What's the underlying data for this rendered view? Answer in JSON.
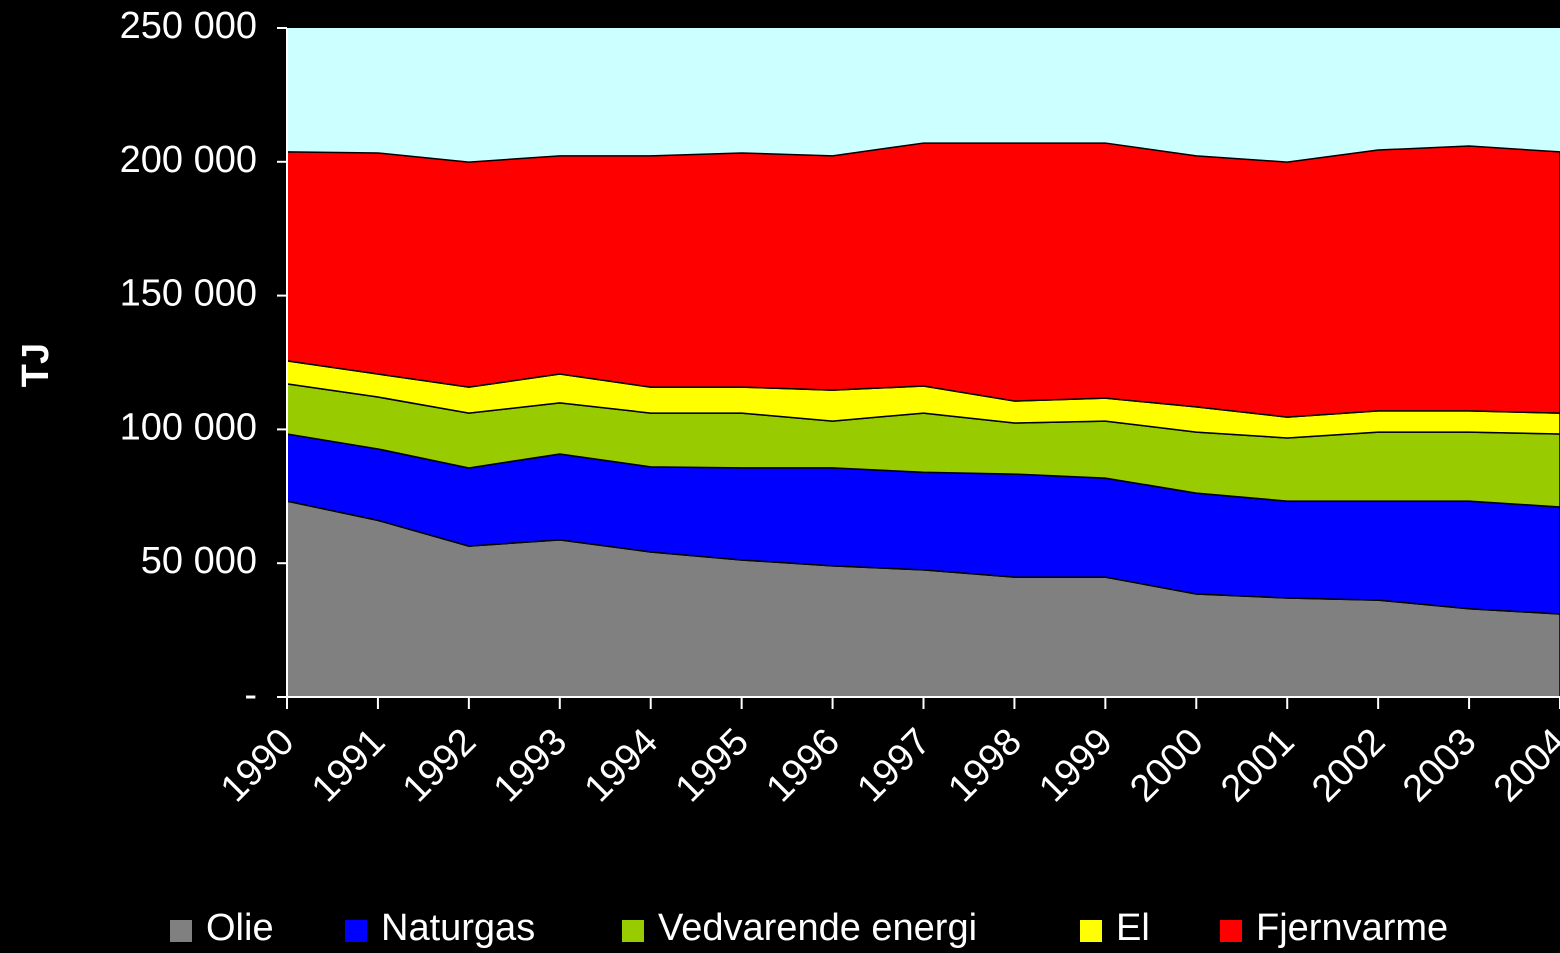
{
  "chart_data": {
    "type": "stacked_area",
    "y_label": "TJ",
    "categories": [
      "1990",
      "1991",
      "1992",
      "1993",
      "1994",
      "1995",
      "1996",
      "1997",
      "1998",
      "1999",
      "2000",
      "2001",
      "2002",
      "2003",
      "2004"
    ],
    "series": [
      {
        "name": "Olie",
        "color": "#808080",
        "values": [
          73.2,
          66,
          56.4,
          58.7,
          54.2,
          51.2,
          49,
          47.5,
          44.8,
          44.8,
          38.5,
          37,
          36.2,
          33,
          31
        ]
      },
      {
        "name": "Naturgas",
        "color": "#0000ff",
        "values": [
          25.1,
          26.7,
          29.2,
          32.1,
          31.8,
          34.4,
          36.6,
          36.5,
          38.5,
          37,
          37.7,
          36.2,
          37,
          40.2,
          40
        ]
      },
      {
        "name": "Vedvarende energi",
        "color": "#99cc00",
        "values": [
          18.7,
          19.4,
          20.5,
          19.1,
          20.1,
          20.5,
          17.5,
          22.1,
          19.1,
          21.3,
          22.8,
          23.6,
          25.8,
          25.8,
          27.3
        ]
      },
      {
        "name": "El",
        "color": "#ffff00",
        "values": [
          8.6,
          8.6,
          9.7,
          10.8,
          9.7,
          9.7,
          11.6,
          10.1,
          8.2,
          8.6,
          9.4,
          7.8,
          7.9,
          7.9,
          7.8
        ]
      },
      {
        "name": "Fjernvarme",
        "color": "#ff0000",
        "values": [
          78.1,
          82.6,
          84.1,
          81.5,
          86.4,
          87.5,
          87.5,
          90.8,
          96.4,
          95.3,
          93.8,
          95.3,
          97.5,
          99,
          97.6
        ]
      }
    ],
    "ylim": [
      0,
      250
    ],
    "yticks": [
      {
        "value": 0,
        "label": "-"
      },
      {
        "value": 50,
        "label": "50 000"
      },
      {
        "value": 100,
        "label": "100 000"
      },
      {
        "value": 150,
        "label": "150 000"
      },
      {
        "value": 200,
        "label": "200 000"
      },
      {
        "value": 250,
        "label": "250 000"
      }
    ],
    "plot_color": "#ccffff",
    "legend": "bottom"
  }
}
